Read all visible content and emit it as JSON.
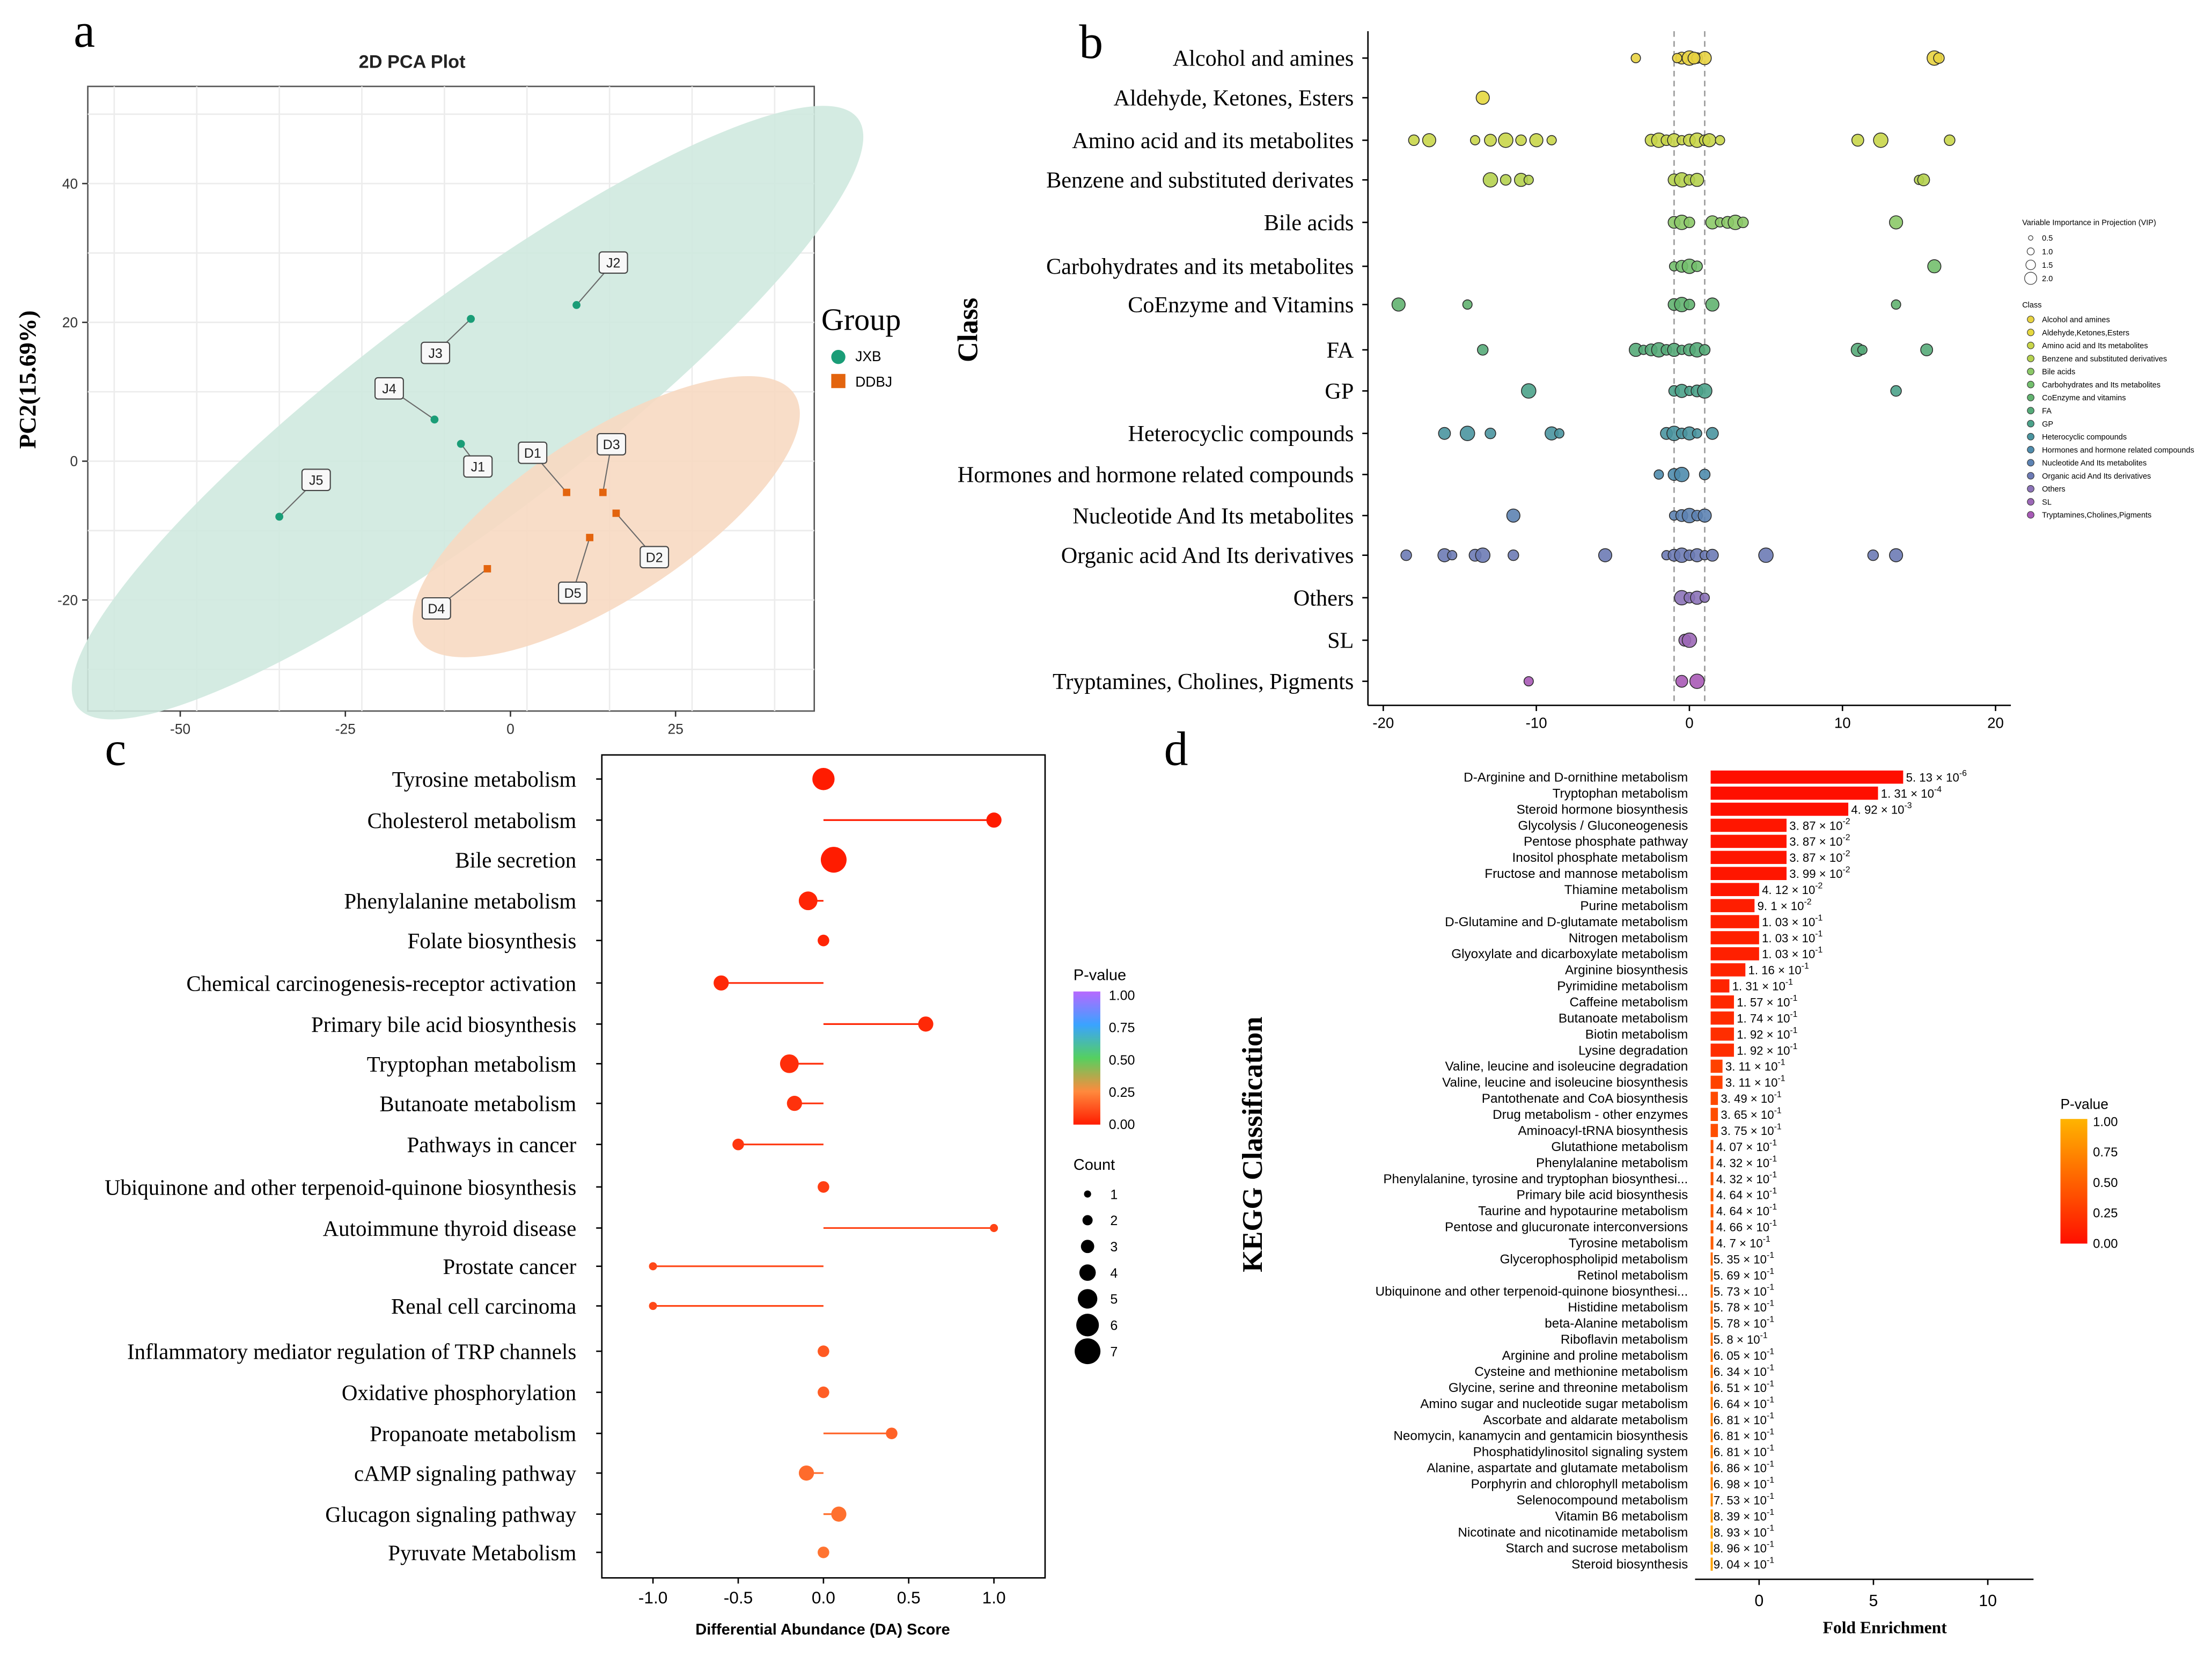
{
  "panels": {
    "a": {
      "letter": "a"
    },
    "b": {
      "letter": "b"
    },
    "c": {
      "letter": "c"
    },
    "d": {
      "letter": "d"
    }
  },
  "chart_data": [
    {
      "id": "a",
      "type": "scatter",
      "title": "2D PCA Plot",
      "xlabel": "",
      "ylabel": "PC2(15.69%)",
      "xlim": [
        -64,
        46
      ],
      "ylim": [
        -36,
        54
      ],
      "xticks": [
        -50,
        -25,
        0,
        25
      ],
      "yticks": [
        -20,
        0,
        20,
        40
      ],
      "grid": true,
      "legend": {
        "title": "Group",
        "placement": "right"
      },
      "colors": {
        "JXB": "#1a9d77",
        "DDBJ": "#e3640e",
        "JXB_ellipse": "#cfe9df",
        "DDBJ_ellipse": "#f7d9c2"
      },
      "series": [
        {
          "name": "JXB",
          "points": [
            {
              "label": "J1",
              "x": -7.5,
              "y": 2.5
            },
            {
              "label": "J2",
              "x": 10,
              "y": 22.5
            },
            {
              "label": "J3",
              "x": -6,
              "y": 20.5
            },
            {
              "label": "J4",
              "x": -11.5,
              "y": 6
            },
            {
              "label": "J5",
              "x": -35,
              "y": -8
            }
          ]
        },
        {
          "name": "DDBJ",
          "points": [
            {
              "label": "D1",
              "x": 8.5,
              "y": -4.5
            },
            {
              "label": "D2",
              "x": 16,
              "y": -7.5
            },
            {
              "label": "D3",
              "x": 14,
              "y": -4.5
            },
            {
              "label": "D4",
              "x": -3.5,
              "y": -15.5
            },
            {
              "label": "D5",
              "x": 12,
              "y": -11
            }
          ]
        }
      ],
      "ellipses": [
        {
          "group": "JXB",
          "cx": -6.5,
          "cy": 7,
          "rx": 74,
          "ry": 16.5,
          "angle_deg": 37
        },
        {
          "group": "DDBJ",
          "cx": 14.5,
          "cy": -8,
          "rx": 34,
          "ry": 12.5,
          "angle_deg": 33
        }
      ]
    },
    {
      "id": "b",
      "type": "scatter",
      "ylabel": "Class",
      "xlim": [
        -21,
        21
      ],
      "xticks": [
        -20,
        -10,
        0,
        10,
        20
      ],
      "vlines": [
        -1,
        1
      ],
      "categories": [
        "Alcohol and amines",
        "Aldehyde, Ketones, Esters",
        "Amino acid and its metabolites",
        "Benzene and substituted derivates",
        "Bile acids",
        "Carbohydrates and its metabolites",
        "CoEnzyme and Vitamins",
        "FA",
        "GP",
        "Heterocyclic compounds",
        "Hormones and hormone related compounds",
        "Nucleotide And Its metabolites",
        "Organic acid And Its derivatives",
        "Others",
        "SL",
        "Tryptamines, Cholines, Pigments"
      ],
      "colors": [
        "#e8d341",
        "#e6d83f",
        "#c9d64a",
        "#b5d24f",
        "#8cc968",
        "#73bf6d",
        "#62b370",
        "#56ab79",
        "#4ba28a",
        "#4a95a0",
        "#4f8cad",
        "#5d83b3",
        "#6d7bb5",
        "#8c73b8",
        "#9c68b7",
        "#a85ab6"
      ],
      "points": [
        [
          -3.5,
          -0.5,
          0,
          0.5,
          1,
          -0.8,
          0.3,
          16,
          16.3
        ],
        [
          -13.5
        ],
        [
          -18,
          -17,
          -14,
          -13,
          -12,
          -11,
          -10,
          -9,
          -2.5,
          -2,
          -1.5,
          -1,
          -0.5,
          0,
          0.5,
          1,
          1.3,
          2,
          11,
          12.5,
          17
        ],
        [
          -13,
          -12,
          -11,
          -10.5,
          -1,
          -0.5,
          0,
          0.5,
          15,
          15.3
        ],
        [
          -1,
          -0.5,
          0,
          1.5,
          2,
          2.5,
          3,
          3.5,
          13.5
        ],
        [
          -1,
          -0.5,
          0,
          0.5,
          16
        ],
        [
          -19,
          -14.5,
          -1,
          -0.5,
          0,
          1.5,
          13.5
        ],
        [
          -13.5,
          -3.5,
          -3,
          -2.5,
          -2,
          -1.5,
          -1,
          -0.5,
          0,
          0.5,
          1,
          11,
          11.3,
          15.5
        ],
        [
          -10.5,
          -1,
          -0.5,
          0,
          0.5,
          1,
          13.5
        ],
        [
          -16,
          -14.5,
          -13,
          -9,
          -8.5,
          -1.5,
          -1,
          -0.5,
          0,
          0.5,
          1.5
        ],
        [
          -2,
          -1,
          -0.5,
          1
        ],
        [
          -11.5,
          -1,
          -0.5,
          0,
          0.5,
          1
        ],
        [
          -18.5,
          -16,
          -15.5,
          -14,
          -13.5,
          -11.5,
          -5.5,
          -1.5,
          -1,
          -0.5,
          0,
          0.5,
          1,
          1.5,
          5,
          12,
          13.5
        ],
        [
          -0.5,
          0,
          0.5,
          1
        ],
        [
          -0.3,
          0
        ],
        [
          -10.5,
          -0.5,
          0.5
        ]
      ],
      "legend": {
        "placement": "right",
        "size_title": "Variable Importance in Projection (VIP)",
        "size_values": [
          "0.5",
          "1.0",
          "1.5",
          "2.0"
        ],
        "class_title": "Class",
        "class_labels": [
          "Alcohol and amines",
          "Aldehyde,Ketones,Esters",
          "Amino acid and Its metabolites",
          "Benzene and substituted derivatives",
          "Bile acids",
          "Carbohydrates and Its metabolites",
          "CoEnzyme and vitamins",
          "FA",
          "GP",
          "Heterocyclic compounds",
          "Hormones and hormone related compounds",
          "Nucleotide And Its metabolites",
          "Organic acid And Its derivatives",
          "Others",
          "SL",
          "Tryptamines,Cholines,Pigments"
        ]
      }
    },
    {
      "id": "c",
      "type": "scatter",
      "xlabel": "Differential Abundance (DA) Score",
      "xlim": [
        -1.3,
        1.3
      ],
      "xticks": [
        "-1.0",
        "-0.5",
        "0.0",
        "0.5",
        "1.0"
      ],
      "pathways": [
        "Tyrosine metabolism",
        "Cholesterol metabolism",
        "Bile secretion",
        "Phenylalanine metabolism",
        "Folate biosynthesis",
        "Chemical carcinogenesis-receptor activation",
        "Primary bile acid biosynthesis",
        "Tryptophan metabolism",
        "Butanoate metabolism",
        "Pathways in cancer",
        "Ubiquinone and other terpenoid-quinone biosynthesis",
        "Autoimmune thyroid disease",
        "Prostate cancer",
        "Renal cell carcinoma",
        "Inflammatory mediator regulation of TRP channels",
        "Oxidative phosphorylation",
        "Propanoate metabolism",
        "cAMP signaling pathway",
        "Glucagon signaling pathway",
        "Pyruvate Metabolism"
      ],
      "da_score": [
        0.0,
        1.0,
        0.06,
        -0.09,
        0.0,
        -0.6,
        0.6,
        -0.2,
        -0.17,
        -0.5,
        0.0,
        1.0,
        -1.0,
        -1.0,
        0.0,
        0.0,
        0.4,
        -0.1,
        0.09,
        0.0
      ],
      "count": [
        5,
        3,
        6,
        4,
        2,
        3,
        3,
        4,
        3,
        2,
        2,
        1,
        1,
        1,
        2,
        2,
        2,
        3,
        3,
        2
      ],
      "pvalue": [
        0.0,
        0.0,
        0.0,
        0.02,
        0.02,
        0.03,
        0.03,
        0.04,
        0.05,
        0.06,
        0.08,
        0.09,
        0.1,
        0.1,
        0.14,
        0.15,
        0.16,
        0.18,
        0.19,
        0.2
      ],
      "legend": {
        "pvalue_title": "P-value",
        "pvalue_ticks": [
          "1.00",
          "0.75",
          "0.50",
          "0.25",
          "0.00"
        ],
        "count_title": "Count",
        "count_values": [
          "1",
          "2",
          "3",
          "4",
          "5",
          "6",
          "7"
        ]
      }
    },
    {
      "id": "d",
      "type": "bar",
      "orientation": "horizontal",
      "ylabel": "KEGG Classification",
      "xlabel": "Fold Enrichment",
      "xlim": [
        -2.8,
        12
      ],
      "xticks": [
        "0",
        "5",
        "10"
      ],
      "categories": [
        "D-Arginine and D-ornithine metabolism",
        "Tryptophan metabolism",
        "Steroid hormone biosynthesis",
        "Glycolysis / Gluconeogenesis",
        "Pentose phosphate pathway",
        "Inositol phosphate metabolism",
        "Fructose and mannose metabolism",
        "Thiamine metabolism",
        "Purine metabolism",
        "D-Glutamine and D-glutamate metabolism",
        "Nitrogen metabolism",
        "Glyoxylate and dicarboxylate metabolism",
        "Arginine biosynthesis",
        "Pyrimidine metabolism",
        "Caffeine metabolism",
        "Butanoate metabolism",
        "Biotin metabolism",
        "Lysine degradation",
        "Valine, leucine and isoleucine degradation",
        "Valine, leucine and isoleucine biosynthesis",
        "Pantothenate and CoA biosynthesis",
        "Drug metabolism - other enzymes",
        "Aminoacyl-tRNA biosynthesis",
        "Glutathione metabolism",
        "Phenylalanine metabolism",
        "Phenylalanine, tyrosine and tryptophan biosynthesi...",
        "Primary bile acid biosynthesis",
        "Taurine and hypotaurine metabolism",
        "Pentose and glucuronate interconversions",
        "Tyrosine metabolism",
        "Glycerophospholipid metabolism",
        "Retinol metabolism",
        "Ubiquinone and other terpenoid-quinone biosynthesi...",
        "Histidine metabolism",
        "beta-Alanine metabolism",
        "Riboflavin metabolism",
        "Arginine and proline metabolism",
        "Cysteine and methionine metabolism",
        "Glycine, serine and threonine metabolism",
        "Amino sugar and nucleotide sugar metabolism",
        "Ascorbate and aldarate metabolism",
        "Neomycin, kanamycin and gentamicin biosynthesis",
        "Phosphatidylinositol signaling system",
        "Alanine, aspartate and glutamate metabolism",
        "Porphyrin and chlorophyll metabolism",
        "Selenocompound metabolism",
        "Vitamin B6 metabolism",
        "Nicotinate and nicotinamide metabolism",
        "Starch and sucrose metabolism",
        "Steroid biosynthesis"
      ],
      "values": [
        6.3,
        5.2,
        3.9,
        1.2,
        1.2,
        1.2,
        1.2,
        0.0,
        -0.2,
        0.0,
        0.0,
        0.0,
        -0.6,
        -1.3,
        -1.1,
        -1.1,
        -1.1,
        -1.1,
        -1.6,
        -1.6,
        -1.8,
        -1.8,
        -1.8,
        -2.0,
        -2.0,
        -2.0,
        -2.0,
        -2.0,
        -2.0,
        -2.0,
        -2.3,
        -2.3,
        -2.3,
        -2.3,
        -2.3,
        -2.3,
        -2.4,
        -2.4,
        -2.4,
        -2.4,
        -2.4,
        -2.4,
        -2.4,
        -2.4,
        -2.4,
        -2.5,
        -2.5,
        -2.7,
        -2.7,
        -2.7
      ],
      "label_mantissa": [
        "5. 13",
        "1. 31",
        "4. 92",
        "3. 87",
        "3. 87",
        "3. 87",
        "3. 99",
        "4. 12",
        "9. 1",
        "1. 03",
        "1. 03",
        "1. 03",
        "1. 16",
        "1. 31",
        "1. 57",
        "1. 74",
        "1. 92",
        "1. 92",
        "3. 11",
        "3. 11",
        "3. 49",
        "3. 65",
        "3. 75",
        "4. 07",
        "4. 32",
        "4. 32",
        "4. 64",
        "4. 64",
        "4. 66",
        "4. 7",
        "5. 35",
        "5. 69",
        "5. 73",
        "5. 78",
        "5. 78",
        "5. 8",
        "6. 05",
        "6. 34",
        "6. 51",
        "6. 64",
        "6. 81",
        "6. 81",
        "6. 81",
        "6. 86",
        "6. 98",
        "7. 53",
        "8. 39",
        "8. 93",
        "8. 96",
        "9. 04"
      ],
      "label_exponent": [
        "-6",
        "-4",
        "-3",
        "-2",
        "-2",
        "-2",
        "-2",
        "-2",
        "-2",
        "-1",
        "-1",
        "-1",
        "-1",
        "-1",
        "-1",
        "-1",
        "-1",
        "-1",
        "-1",
        "-1",
        "-1",
        "-1",
        "-1",
        "-1",
        "-1",
        "-1",
        "-1",
        "-1",
        "-1",
        "-1",
        "-1",
        "-1",
        "-1",
        "-1",
        "-1",
        "-1",
        "-1",
        "-1",
        "-1",
        "-1",
        "-1",
        "-1",
        "-1",
        "-1",
        "-1",
        "-1",
        "-1",
        "-1",
        "-1",
        "-1"
      ],
      "pvalue": [
        0.0,
        0.0,
        0.0,
        0.04,
        0.04,
        0.04,
        0.04,
        0.04,
        0.09,
        0.1,
        0.1,
        0.1,
        0.12,
        0.13,
        0.16,
        0.17,
        0.19,
        0.19,
        0.31,
        0.31,
        0.35,
        0.37,
        0.38,
        0.41,
        0.43,
        0.43,
        0.46,
        0.46,
        0.47,
        0.47,
        0.54,
        0.57,
        0.57,
        0.58,
        0.58,
        0.58,
        0.61,
        0.63,
        0.65,
        0.66,
        0.68,
        0.68,
        0.68,
        0.69,
        0.7,
        0.75,
        0.84,
        0.89,
        0.9,
        0.9
      ],
      "legend": {
        "title": "P-value",
        "ticks": [
          "1.00",
          "0.75",
          "0.50",
          "0.25",
          "0.00"
        ]
      }
    }
  ]
}
